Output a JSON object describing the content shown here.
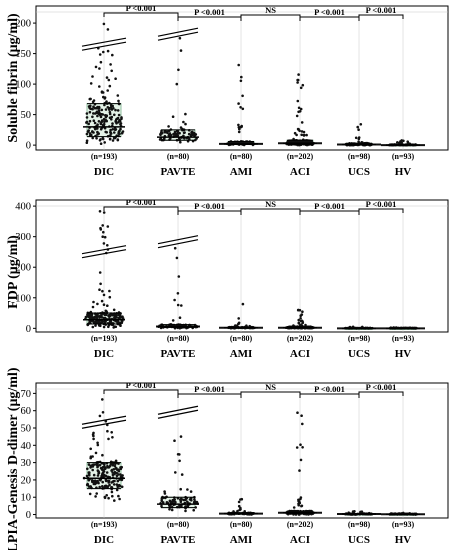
{
  "chart_data": [
    {
      "type": "scatter",
      "ylabel": "Soluble fibrin (μg/ml)",
      "ylim": [
        -8,
        228
      ],
      "yticks": [
        "0",
        "50",
        "100",
        "150",
        "200"
      ],
      "yticks_values": [
        0,
        50,
        100,
        150,
        200
      ],
      "axis_break": 190,
      "categories": [
        "DIC",
        "PAVTE",
        "AMI",
        "ACI",
        "UCS",
        "HV"
      ],
      "counts": [
        "(n=193)",
        "(n=80)",
        "(n=80)",
        "(n=202)",
        "(n=98)",
        "(n=93)"
      ],
      "medians": [
        30,
        13,
        2,
        3,
        1,
        0
      ],
      "q1": [
        14,
        8,
        1,
        1,
        0,
        0
      ],
      "q3": [
        68,
        25,
        6,
        8,
        3,
        1
      ],
      "ranges": [
        [
          2,
          200
        ],
        [
          1,
          215
        ],
        [
          0,
          150
        ],
        [
          0,
          120
        ],
        [
          0,
          40
        ],
        [
          0,
          8
        ]
      ],
      "comparisons": [
        {
          "from": "DIC",
          "to": "PAVTE",
          "label": "P <0.001"
        },
        {
          "from": "PAVTE",
          "to": "AMI",
          "label": "P <0.001"
        },
        {
          "from": "AMI",
          "to": "ACI",
          "label": "NS"
        },
        {
          "from": "ACI",
          "to": "UCS",
          "label": "P <0.001"
        },
        {
          "from": "UCS",
          "to": "HV",
          "label": "P <0.001"
        }
      ]
    },
    {
      "type": "scatter",
      "ylabel": "FDP (μg/ml)",
      "ylim": [
        -12,
        420
      ],
      "yticks": [
        "0",
        "100",
        "200",
        "300",
        "400"
      ],
      "yticks_values": [
        0,
        100,
        200,
        300,
        400
      ],
      "axis_break": 300,
      "categories": [
        "DIC",
        "PAVTE",
        "AMI",
        "ACI",
        "UCS",
        "HV"
      ],
      "counts": [
        "(n=193)",
        "(n=80)",
        "(n=80)",
        "(n=202)",
        "(n=98)",
        "(n=93)"
      ],
      "medians": [
        28,
        6,
        2,
        2,
        0,
        0
      ],
      "q1": [
        14,
        3,
        1,
        1,
        0,
        0
      ],
      "q3": [
        50,
        12,
        4,
        5,
        1,
        1
      ],
      "ranges": [
        [
          3,
          400
        ],
        [
          0,
          280
        ],
        [
          0,
          130
        ],
        [
          0,
          60
        ],
        [
          0,
          5
        ],
        [
          0,
          3
        ]
      ],
      "comparisons": [
        {
          "from": "DIC",
          "to": "PAVTE",
          "label": "P <0.001"
        },
        {
          "from": "PAVTE",
          "to": "AMI",
          "label": "P <0.001"
        },
        {
          "from": "AMI",
          "to": "ACI",
          "label": "NS"
        },
        {
          "from": "ACI",
          "to": "UCS",
          "label": "P <0.001"
        },
        {
          "from": "UCS",
          "to": "HV",
          "label": "P <0.001"
        }
      ]
    },
    {
      "type": "scatter",
      "ylabel": "LPIA-Genesis D-dimer (μg/ml)",
      "ylim": [
        -2,
        76
      ],
      "yticks": [
        "0",
        "10",
        "20",
        "30",
        "40",
        "50",
        "60",
        "70"
      ],
      "yticks_values": [
        0,
        10,
        20,
        30,
        40,
        50,
        60,
        70
      ],
      "axis_break": 62,
      "categories": [
        "DIC",
        "PAVTE",
        "AMI",
        "ACI",
        "UCS",
        "HV"
      ],
      "counts": [
        "(n=193)",
        "(n=80)",
        "(n=80)",
        "(n=202)",
        "(n=98)",
        "(n=93)"
      ],
      "medians": [
        21,
        6,
        0.5,
        1,
        0.3,
        0.2
      ],
      "q1": [
        15,
        4,
        0.3,
        0.5,
        0.2,
        0.1
      ],
      "q3": [
        30,
        10,
        1,
        2,
        0.5,
        0.4
      ],
      "ranges": [
        [
          8,
          72
        ],
        [
          1,
          72
        ],
        [
          0,
          10
        ],
        [
          0,
          60
        ],
        [
          0,
          2
        ],
        [
          0,
          1
        ]
      ],
      "comparisons": [
        {
          "from": "DIC",
          "to": "PAVTE",
          "label": "P <0.001"
        },
        {
          "from": "PAVTE",
          "to": "AMI",
          "label": "P <0.001"
        },
        {
          "from": "AMI",
          "to": "ACI",
          "label": "NS"
        },
        {
          "from": "ACI",
          "to": "UCS",
          "label": "P <0.001"
        },
        {
          "from": "UCS",
          "to": "HV",
          "label": "P <0.001"
        }
      ]
    }
  ],
  "colors": {
    "points": "#111111",
    "box_stroke": "#8fbf9f",
    "box_fill": "#e4f2e7",
    "frame": "#000000",
    "grid": "#c8c8c8"
  }
}
